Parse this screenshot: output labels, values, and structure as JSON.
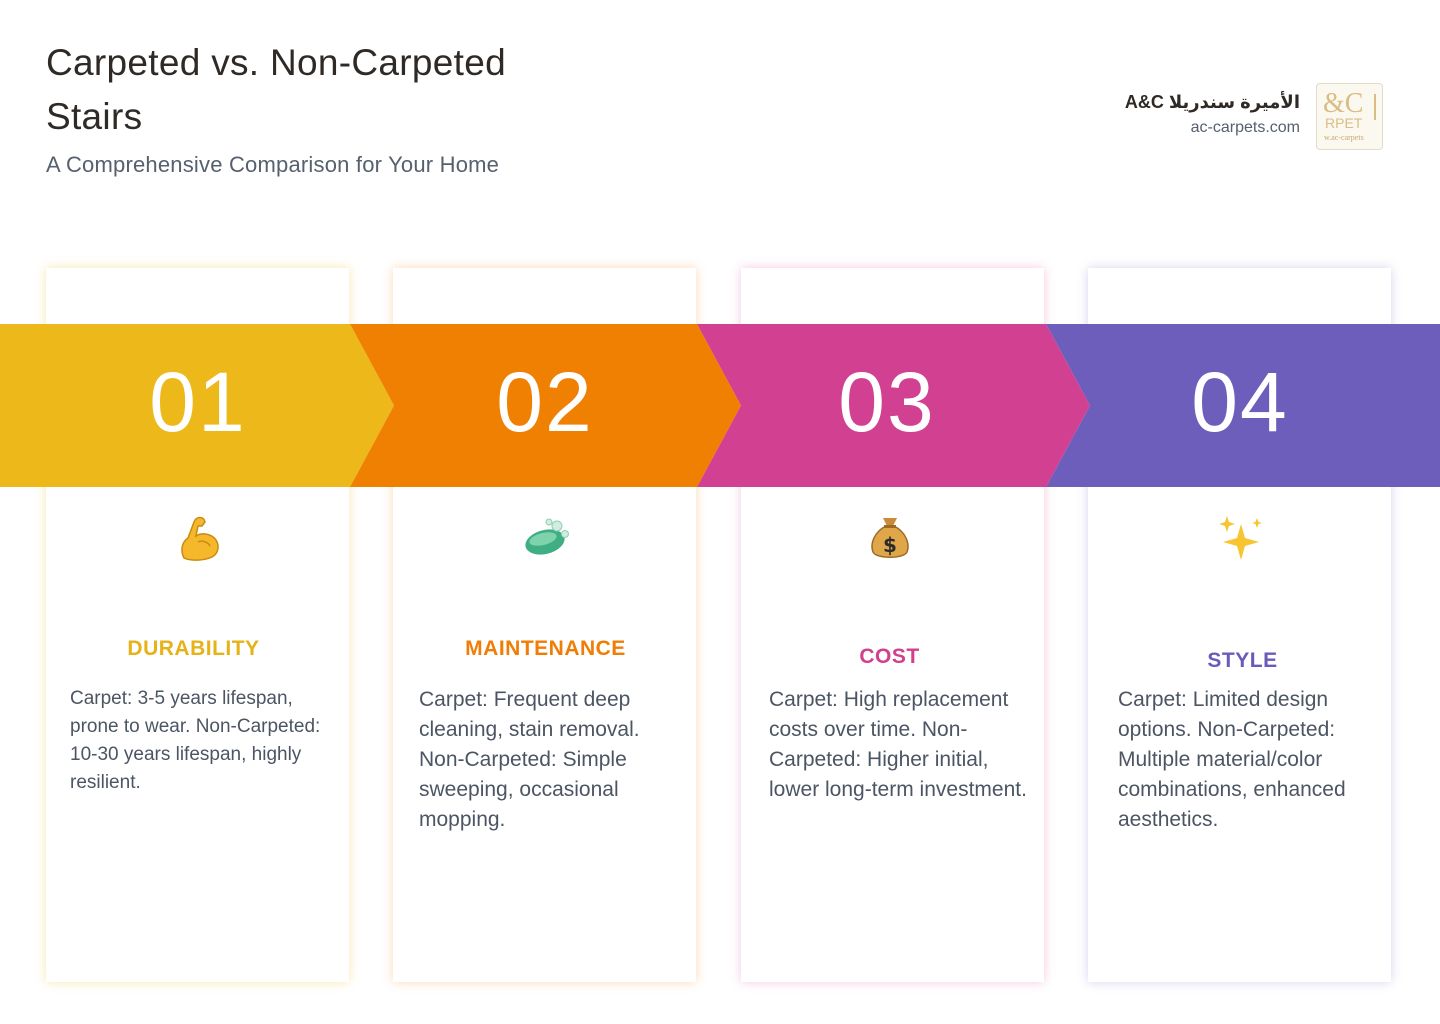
{
  "header": {
    "title": "Carpeted vs. Non-Carpeted Stairs",
    "subtitle": "A Comprehensive Comparison for Your Home"
  },
  "brand": {
    "name": "الأميرة سندريلا A&C",
    "url": "ac-carpets.com",
    "logo_text": [
      "&C",
      "RPET",
      "w.ac-carpets"
    ]
  },
  "colors": {
    "yellow": "#ecb81a",
    "orange": "#f08002",
    "pink": "#d24092",
    "purple": "#6e5ebc"
  },
  "steps": [
    {
      "number": "01",
      "icon": "flexed-biceps-icon",
      "heading": "DURABILITY",
      "text": "Carpet: 3-5 years lifespan, prone to wear. Non-Carpeted: 10-30 years lifespan, highly resilient."
    },
    {
      "number": "02",
      "icon": "soap-icon",
      "heading": "MAINTENANCE",
      "text": "Carpet: Frequent deep cleaning, stain removal. Non-Carpeted: Simple sweeping, occasional mopping."
    },
    {
      "number": "03",
      "icon": "money-bag-icon",
      "heading": "COST",
      "text": "Carpet: High replacement costs over time. Non-Carpeted: Higher initial, lower long-term investment."
    },
    {
      "number": "04",
      "icon": "sparkles-icon",
      "heading": "STYLE",
      "text": "Carpet: Limited design options. Non-Carpeted: Multiple material/color combinations, enhanced aesthetics."
    }
  ]
}
